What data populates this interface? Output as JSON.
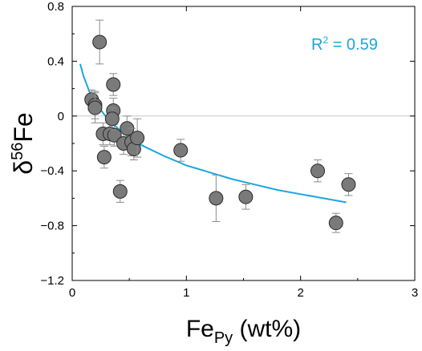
{
  "chart_data": {
    "type": "scatter",
    "xlabel": {
      "main": "Fe",
      "sub": "Py",
      "unit": " (wt%)"
    },
    "ylabel": {
      "delta": "δ",
      "sup": "56",
      "element": "Fe"
    },
    "xlim": [
      0,
      3
    ],
    "ylim": [
      -1.2,
      0.8
    ],
    "x_ticks": [
      "0",
      "1",
      "2",
      "3"
    ],
    "x_tick_values": [
      0,
      1,
      2,
      3
    ],
    "y_ticks": [
      "0.8",
      "0.4",
      "0",
      "−0.4",
      "−0.8",
      "−1.2"
    ],
    "y_tick_values": [
      0.8,
      0.4,
      0,
      -0.4,
      -0.8,
      -1.2
    ],
    "reference_line_y": 0,
    "annotation": {
      "text_main": "R",
      "text_sup": "2",
      "text_rest": " = 0.59",
      "color": "#1aa6e0"
    },
    "fit_color": "#1aa6e0",
    "marker_color": "#7a7a7a",
    "error_color": "#8c8c8c",
    "fit_curve": {
      "x": [
        0.07,
        0.1,
        0.15,
        0.2,
        0.3,
        0.4,
        0.5,
        0.6,
        0.8,
        1.0,
        1.2,
        1.4,
        1.6,
        1.8,
        2.0,
        2.2,
        2.4
      ],
      "y": [
        0.38,
        0.29,
        0.18,
        0.1,
        -0.01,
        -0.09,
        -0.16,
        -0.21,
        -0.29,
        -0.36,
        -0.41,
        -0.46,
        -0.5,
        -0.54,
        -0.57,
        -0.6,
        -0.63
      ]
    },
    "points": [
      {
        "x": 0.17,
        "y": 0.12,
        "err": 0.07
      },
      {
        "x": 0.2,
        "y": 0.08,
        "err": 0.1
      },
      {
        "x": 0.2,
        "y": 0.06,
        "err": 0.11
      },
      {
        "x": 0.24,
        "y": 0.54,
        "err": 0.16
      },
      {
        "x": 0.27,
        "y": -0.13,
        "err": 0.08
      },
      {
        "x": 0.28,
        "y": -0.3,
        "err": 0.08
      },
      {
        "x": 0.33,
        "y": -0.13,
        "err": 0.08
      },
      {
        "x": 0.36,
        "y": 0.23,
        "err": 0.08
      },
      {
        "x": 0.36,
        "y": 0.04,
        "err": 0.09
      },
      {
        "x": 0.37,
        "y": -0.14,
        "err": 0.08
      },
      {
        "x": 0.35,
        "y": -0.02,
        "err": 0.08
      },
      {
        "x": 0.42,
        "y": -0.55,
        "err": 0.08
      },
      {
        "x": 0.45,
        "y": -0.2,
        "err": 0.08
      },
      {
        "x": 0.48,
        "y": -0.09,
        "err": 0.09
      },
      {
        "x": 0.52,
        "y": -0.19,
        "err": 0.1
      },
      {
        "x": 0.54,
        "y": -0.24,
        "err": 0.08
      },
      {
        "x": 0.57,
        "y": -0.16,
        "err": 0.14
      },
      {
        "x": 0.95,
        "y": -0.25,
        "err": 0.08
      },
      {
        "x": 1.26,
        "y": -0.6,
        "err": 0.17
      },
      {
        "x": 1.52,
        "y": -0.59,
        "err": 0.09
      },
      {
        "x": 2.15,
        "y": -0.4,
        "err": 0.08
      },
      {
        "x": 2.31,
        "y": -0.78,
        "err": 0.07
      },
      {
        "x": 2.42,
        "y": -0.5,
        "err": 0.08
      }
    ]
  }
}
